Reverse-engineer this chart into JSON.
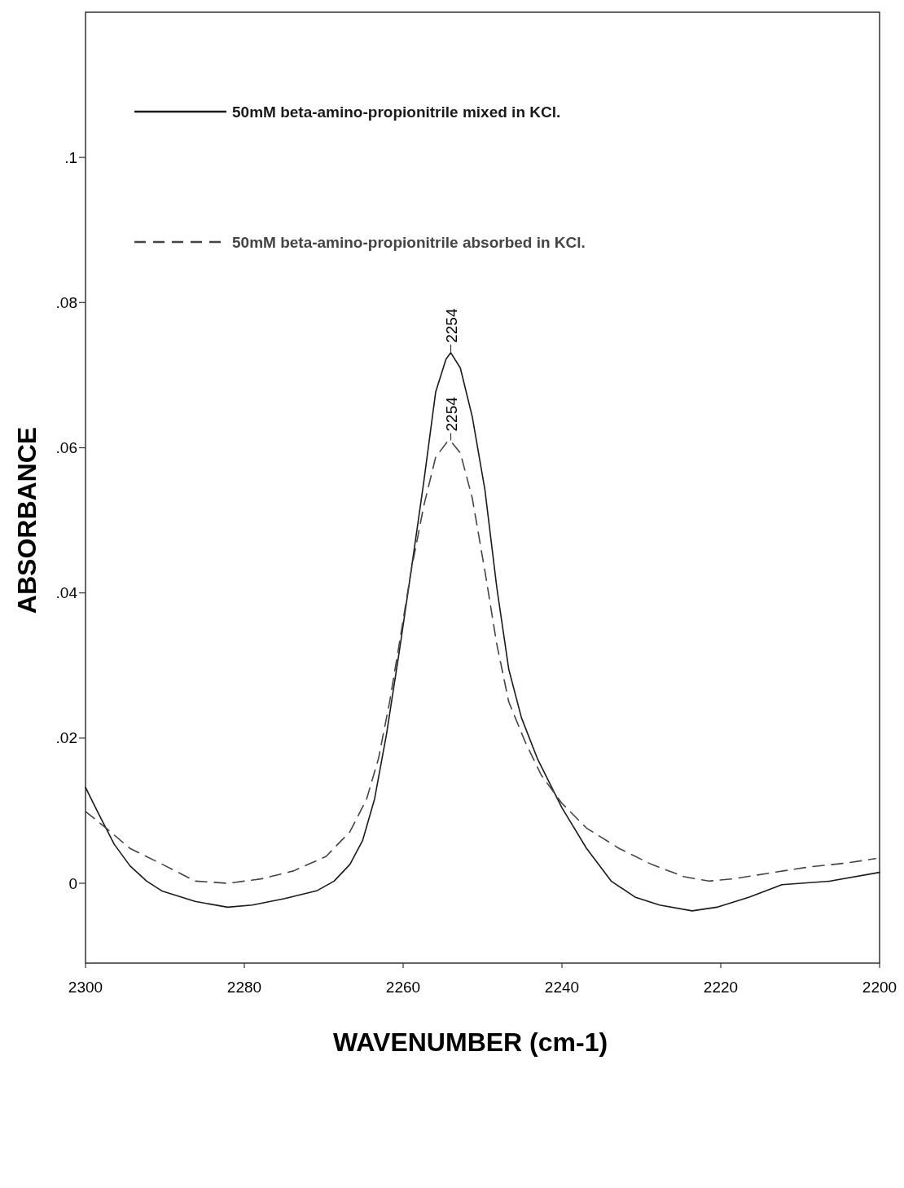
{
  "chart_data": {
    "type": "line",
    "xlabel": "WAVENUMBER (cm-1)",
    "ylabel": "ABSORBANCE",
    "xlim": [
      2300,
      2200
    ],
    "xticks": [
      2300,
      2280,
      2260,
      2240,
      2220,
      2200
    ],
    "ylim": [
      -0.011,
      0.12
    ],
    "yticks": [
      {
        "value": 0,
        "label": "0"
      },
      {
        "value": 0.02,
        "label": ".02"
      },
      {
        "value": 0.04,
        "label": ".04"
      },
      {
        "value": 0.06,
        "label": ".06"
      },
      {
        "value": 0.08,
        "label": ".08"
      },
      {
        "value": 0.1,
        "label": ".1"
      }
    ],
    "grid": false,
    "legend": "top left",
    "marker": "none",
    "series": [
      {
        "name": "50mM beta-amino-propionitrile mixed in KCl.",
        "color": "#1a1a1a",
        "line_style": "solid",
        "x": [
          2300,
          2298.5,
          2296.4,
          2294.4,
          2292.3,
          2290.3,
          2286.2,
          2282.1,
          2279,
          2274.9,
          2270.8,
          2268.7,
          2266.7,
          2265.1,
          2263.6,
          2262.1,
          2260.5,
          2259,
          2257.4,
          2255.9,
          2254.6,
          2254,
          2252.8,
          2251.3,
          2249.7,
          2248.2,
          2246.7,
          2245.1,
          2243.1,
          2240,
          2236.9,
          2233.8,
          2230.8,
          2227.7,
          2223.6,
          2220.5,
          2216.4,
          2212.3,
          2206.2,
          2200
        ],
        "values": [
          0.0132,
          0.0099,
          0.0054,
          0.0024,
          0.0003,
          -0.0011,
          -0.0025,
          -0.0033,
          -0.003,
          -0.0021,
          -0.001,
          0.0003,
          0.0026,
          0.0059,
          0.0116,
          0.0205,
          0.0318,
          0.043,
          0.0553,
          0.0677,
          0.0722,
          0.0731,
          0.071,
          0.0643,
          0.0542,
          0.0407,
          0.0295,
          0.0228,
          0.0172,
          0.0104,
          0.0048,
          0.0003,
          -0.0019,
          -0.003,
          -0.0038,
          -0.0033,
          -0.0019,
          -0.0002,
          0.0003,
          0.0015
        ]
      },
      {
        "name": "50mM beta-amino-propionitrile absorbed in KCl.",
        "color": "#444444",
        "line_style": "dashed",
        "x": [
          2300,
          2297.4,
          2294.4,
          2290.3,
          2286.2,
          2282.1,
          2277.9,
          2273.8,
          2269.7,
          2266.7,
          2264.6,
          2263.1,
          2261.7,
          2260.5,
          2259,
          2257.4,
          2255.9,
          2254.4,
          2254,
          2252.8,
          2251.3,
          2249.7,
          2248.2,
          2246.7,
          2244.6,
          2242.6,
          2240,
          2236.9,
          2232.8,
          2228.7,
          2224.6,
          2221.5,
          2218.5,
          2213.3,
          2209.2,
          2204.1,
          2200.5
        ],
        "values": [
          0.0099,
          0.0076,
          0.0048,
          0.0026,
          0.0003,
          0,
          0.0006,
          0.0017,
          0.0037,
          0.0071,
          0.0116,
          0.0172,
          0.025,
          0.0329,
          0.043,
          0.052,
          0.0587,
          0.0609,
          0.0609,
          0.0593,
          0.0531,
          0.043,
          0.0329,
          0.025,
          0.0194,
          0.0149,
          0.011,
          0.0076,
          0.0048,
          0.0026,
          0.0009,
          0.0003,
          0.0006,
          0.0015,
          0.0022,
          0.0028,
          0.0034
        ]
      }
    ],
    "annotations": [
      {
        "text": "2254",
        "x": 2254,
        "y": 0.0731
      },
      {
        "text": "2254",
        "x": 2254,
        "y": 0.0609
      }
    ]
  }
}
